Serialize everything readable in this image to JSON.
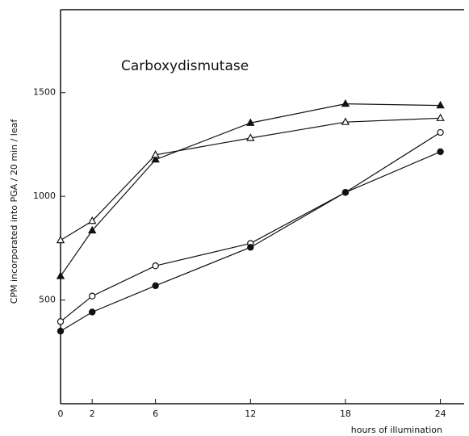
{
  "chart_data": {
    "type": "line",
    "annotation": "Carboxydismutase",
    "y_label": "CPM incorporated into PGA / 20 min / leaf",
    "x_label": "hours of illumination",
    "x": [
      0,
      2,
      6,
      12,
      18,
      24
    ],
    "series": [
      {
        "color": "#111111",
        "marker": "filled-triangle",
        "values": [
          615,
          835,
          1177,
          1354,
          1446,
          1438
        ]
      },
      {
        "color": "#111111",
        "marker": "open-triangle",
        "values": [
          788,
          881,
          1200,
          1281,
          1358,
          1377
        ]
      },
      {
        "color": "#111111",
        "marker": "open-circle",
        "values": [
          396,
          519,
          665,
          773,
          1019,
          1308
        ]
      },
      {
        "color": "#111111",
        "marker": "filled-circle",
        "values": [
          350,
          442,
          569,
          754,
          1019,
          1215
        ]
      }
    ],
    "xlim": [
      0,
      25.5
    ],
    "ylim": [
      0,
      1900
    ],
    "xticks": [
      0,
      2,
      6,
      12,
      18,
      24
    ],
    "yticks": [
      500,
      1000,
      1500
    ]
  }
}
